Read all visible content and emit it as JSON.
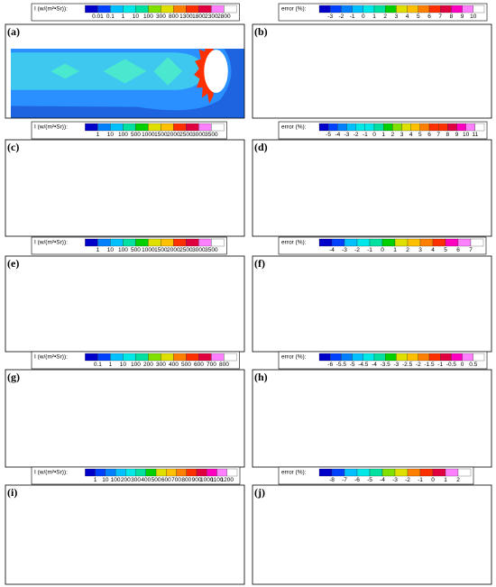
{
  "colormap": [
    "#0000c8",
    "#0040ff",
    "#0080ff",
    "#00c0ff",
    "#00e8e8",
    "#00e0a0",
    "#00d000",
    "#80e000",
    "#e0e000",
    "#ffc000",
    "#ff8000",
    "#ff3000",
    "#e00040",
    "#ff00c0",
    "#ff80ff",
    "#ffffff"
  ],
  "panels": [
    {
      "label": "(a)",
      "colorbar": {
        "title": "I (w/(m²•Sr)):",
        "ticks": [
          "0.01",
          "0.1",
          "1",
          "10",
          "100",
          "300",
          "800",
          "1300",
          "1800",
          "2300",
          "2800"
        ]
      },
      "field_colors": [
        "#1e64e0",
        "#2a90ff",
        "#3ec8f0",
        "#4be8d0",
        "#ff3000",
        "#ffffff"
      ]
    },
    {
      "label": "(b)",
      "colorbar": {
        "title": "error (%):",
        "ticks": [
          "-3",
          "-2",
          "-1",
          "0",
          "1",
          "2",
          "3",
          "4",
          "5",
          "6",
          "7",
          "8",
          "9",
          "10"
        ]
      },
      "field_colors": [
        "#32e0b0",
        "#38d8c0",
        "#3ad8c8",
        "#40e0c0",
        "#ff70f0",
        "#ffffff"
      ]
    },
    {
      "label": "(c)",
      "colorbar": {
        "title": "I (w/(m²•Sr)):",
        "ticks": [
          "1",
          "10",
          "100",
          "500",
          "1000",
          "1500",
          "2000",
          "2500",
          "3000",
          "3500"
        ]
      },
      "field_colors": [
        "#1e64e0",
        "#2a90ff",
        "#3ec8f0",
        "#4be8d0",
        "#ffc000",
        "#e8203a"
      ]
    },
    {
      "label": "(d)",
      "colorbar": {
        "title": "error (%):",
        "ticks": [
          "-5",
          "-4",
          "-3",
          "-2",
          "-1",
          "0",
          "1",
          "2",
          "3",
          "4",
          "5",
          "6",
          "7",
          "8",
          "9",
          "10",
          "11"
        ]
      },
      "field_colors": [
        "#50d040",
        "#70d838",
        "#88d830",
        "#a0e040",
        "#ff3000",
        "#ff8000"
      ]
    },
    {
      "label": "(e)",
      "colorbar": {
        "title": "I (w/(m²•Sr)):",
        "ticks": [
          "1",
          "10",
          "100",
          "500",
          "1000",
          "1500",
          "2000",
          "2500",
          "3000",
          "3500"
        ]
      },
      "field_colors": [
        "#1e64e0",
        "#2a90ff",
        "#3ec8f0",
        "#4be8d0",
        "#ff40c0",
        "#ffffff"
      ]
    },
    {
      "label": "(f)",
      "colorbar": {
        "title": "error (%):",
        "ticks": [
          "-4",
          "-3",
          "-2",
          "-1",
          "0",
          "1",
          "2",
          "3",
          "4",
          "5",
          "6",
          "7"
        ]
      },
      "field_colors": [
        "#4ad040",
        "#40e0e0",
        "#30c8f0",
        "#40e0e0",
        "#ff70f0",
        "#ffffff"
      ]
    },
    {
      "label": "(g)",
      "colorbar": {
        "title": "I (w/(m²•Sr)):",
        "ticks": [
          "0.1",
          "1",
          "10",
          "100",
          "200",
          "300",
          "400",
          "500",
          "600",
          "700",
          "800"
        ]
      },
      "field_colors": [
        "#1e64e0",
        "#38c850",
        "#38c8f0",
        "#50e8d0",
        "#ff40e0",
        "#ffffff"
      ]
    },
    {
      "label": "(h)",
      "colorbar": {
        "title": "error (%):",
        "ticks": [
          "-6",
          "-5.5",
          "-5",
          "-4.5",
          "-4",
          "-3.5",
          "-3",
          "-2.5",
          "-2",
          "-1.5",
          "-1",
          "-0.5",
          "0",
          "0.5"
        ]
      },
      "field_colors": [
        "#ff40e0",
        "#40c040",
        "#a0e060",
        "#c0e070",
        "#ff8000",
        "#40d050"
      ]
    },
    {
      "label": "(i)",
      "colorbar": {
        "title": "I (w/(m²•Sr)):",
        "ticks": [
          "1",
          "10",
          "100",
          "200",
          "300",
          "400",
          "500",
          "600",
          "700",
          "800",
          "900",
          "1000",
          "1100",
          "1200"
        ]
      },
      "field_colors": [
        "#1e64e0",
        "#30b0f0",
        "#38c8f0",
        "#4ad8f0",
        "#ff60e0",
        "#ffffff"
      ]
    },
    {
      "label": "(j)",
      "colorbar": {
        "title": "error (%):",
        "ticks": [
          "-8",
          "-7",
          "-6",
          "-5",
          "-4",
          "-3",
          "-2",
          "-1",
          "0",
          "1",
          "2"
        ]
      },
      "field_colors": [
        "#f0206a",
        "#ff50e0",
        "#40d0f0",
        "#50e060",
        "#ff7000",
        "#ffffff"
      ]
    }
  ]
}
